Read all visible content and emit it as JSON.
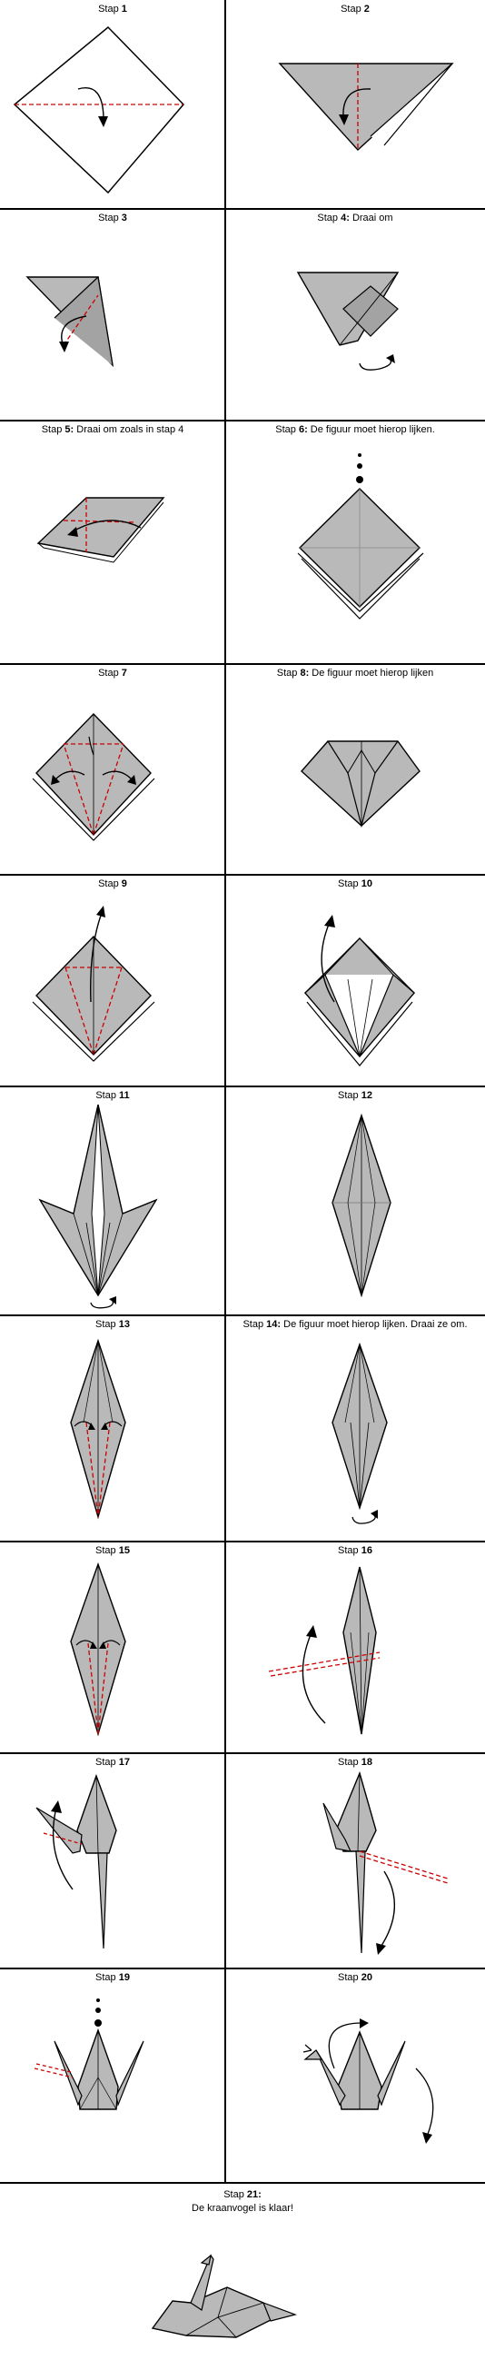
{
  "colors": {
    "paper": "#b9b9b9",
    "paper_dark": "#a3a3a3",
    "line": "#000000",
    "fold": "#cc0000",
    "background": "#ffffff"
  },
  "steps": [
    {
      "label": "Stap",
      "num": "1",
      "text": ""
    },
    {
      "label": "Stap",
      "num": "2",
      "text": ""
    },
    {
      "label": "Stap",
      "num": "3",
      "text": ""
    },
    {
      "label": "Stap",
      "num": "4:",
      "text": " Draai om"
    },
    {
      "label": "Stap",
      "num": "5:",
      "text": " Draai om zoals in stap 4"
    },
    {
      "label": "Stap",
      "num": "6:",
      "text": " De figuur moet hierop lijken."
    },
    {
      "label": "Stap",
      "num": "7",
      "text": ""
    },
    {
      "label": "Stap",
      "num": "8:",
      "text": " De figuur moet hierop lijken"
    },
    {
      "label": "Stap",
      "num": "9",
      "text": ""
    },
    {
      "label": "Stap",
      "num": "10",
      "text": ""
    },
    {
      "label": "Stap",
      "num": "11",
      "text": ""
    },
    {
      "label": "Stap",
      "num": "12",
      "text": ""
    },
    {
      "label": "Stap",
      "num": "13",
      "text": ""
    },
    {
      "label": "Stap",
      "num": "14:",
      "text": " De figuur moet hierop lijken. Draai ze om."
    },
    {
      "label": "Stap",
      "num": "15",
      "text": ""
    },
    {
      "label": "Stap",
      "num": "16",
      "text": ""
    },
    {
      "label": "Stap",
      "num": "17",
      "text": ""
    },
    {
      "label": "Stap",
      "num": "18",
      "text": ""
    },
    {
      "label": "Stap",
      "num": "19",
      "text": ""
    },
    {
      "label": "Stap",
      "num": "20",
      "text": ""
    }
  ],
  "final": {
    "label": "Stap",
    "num": "21:",
    "text": "De kraanvogel is klaar!"
  }
}
